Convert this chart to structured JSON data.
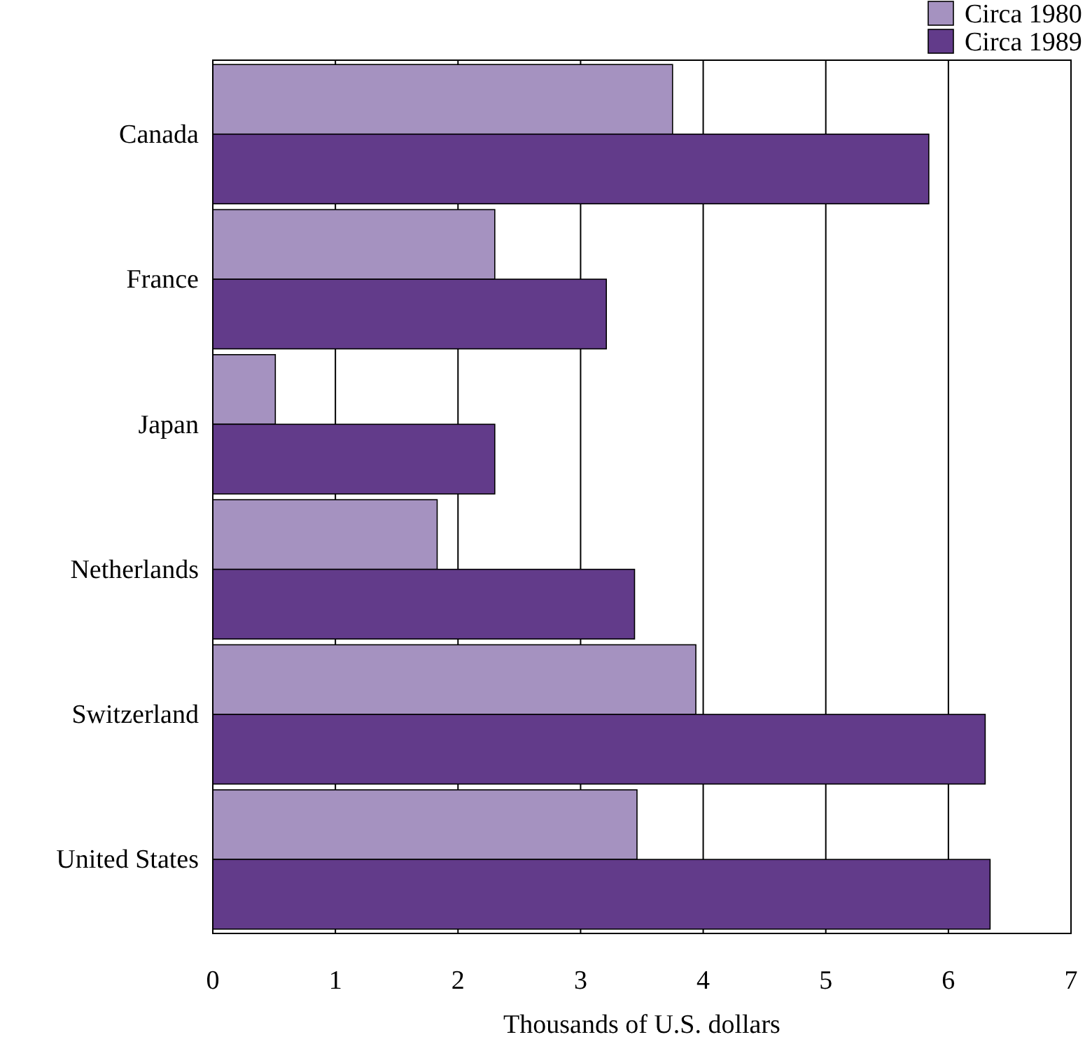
{
  "chart_data": {
    "type": "bar",
    "orientation": "horizontal",
    "xlabel": "Thousands of U.S. dollars",
    "categories": [
      "Canada",
      "France",
      "Japan",
      "Netherlands",
      "Switzerland",
      "United States"
    ],
    "series": [
      {
        "name": "Circa 1980",
        "color": "#a592c0",
        "values": [
          3.75,
          2.3,
          0.51,
          1.83,
          3.94,
          3.46
        ]
      },
      {
        "name": "Circa 1989",
        "color": "#623b8a",
        "values": [
          5.84,
          3.21,
          2.3,
          3.44,
          6.3,
          6.34
        ]
      }
    ],
    "xlim": [
      0,
      7
    ],
    "xticks": [
      0,
      1,
      2,
      3,
      4,
      5,
      6,
      7
    ],
    "grid": "x",
    "legend": "top right"
  }
}
